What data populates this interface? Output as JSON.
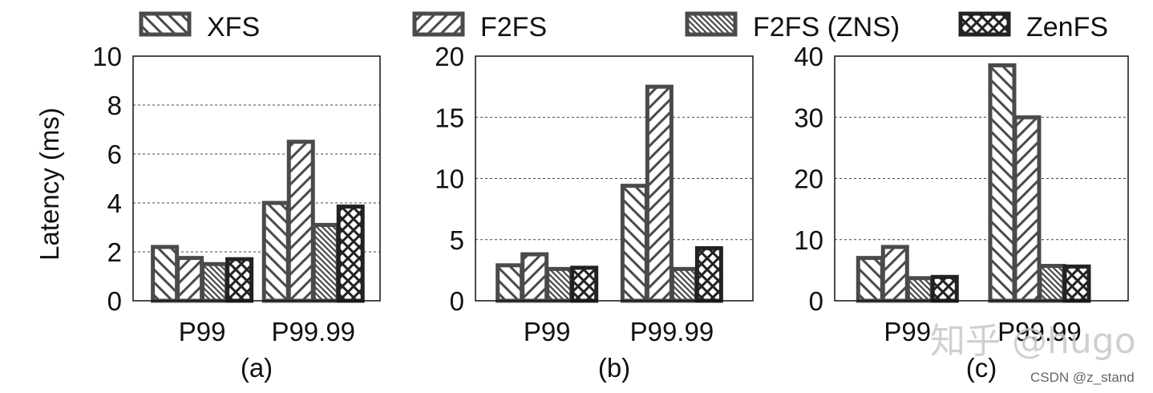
{
  "legend": [
    {
      "label": "XFS",
      "pattern": "back-diagonal"
    },
    {
      "label": "F2FS",
      "pattern": "forward-diagonal"
    },
    {
      "label": "F2FS (ZNS)",
      "pattern": "dense-back-diagonal"
    },
    {
      "label": "ZenFS",
      "pattern": "crosshatch"
    }
  ],
  "colors": {
    "bar_stroke": "#4a4a4a",
    "zenfs_stroke": "#222222",
    "grid": "#444444",
    "axis": "#111111"
  },
  "chart_data": [
    {
      "type": "bar",
      "panel_label": "(a)",
      "ylabel": "Latency (ms)",
      "categories": [
        "P99",
        "P99.99"
      ],
      "ylim": [
        0,
        10
      ],
      "yticks": [
        0,
        2,
        4,
        6,
        8,
        10
      ],
      "grid": true,
      "series": [
        {
          "name": "XFS",
          "values": [
            2.2,
            4.0
          ]
        },
        {
          "name": "F2FS",
          "values": [
            1.75,
            6.5
          ]
        },
        {
          "name": "F2FS (ZNS)",
          "values": [
            1.5,
            3.1
          ]
        },
        {
          "name": "ZenFS",
          "values": [
            1.7,
            3.85
          ]
        }
      ]
    },
    {
      "type": "bar",
      "panel_label": "(b)",
      "ylabel": "",
      "categories": [
        "P99",
        "P99.99"
      ],
      "ylim": [
        0,
        20
      ],
      "yticks": [
        0,
        5,
        10,
        15,
        20
      ],
      "grid": true,
      "series": [
        {
          "name": "XFS",
          "values": [
            2.9,
            9.4
          ]
        },
        {
          "name": "F2FS",
          "values": [
            3.8,
            17.5
          ]
        },
        {
          "name": "F2FS (ZNS)",
          "values": [
            2.6,
            2.6
          ]
        },
        {
          "name": "ZenFS",
          "values": [
            2.7,
            4.3
          ]
        }
      ]
    },
    {
      "type": "bar",
      "panel_label": "(c)",
      "ylabel": "",
      "categories": [
        "P99",
        "P99.99"
      ],
      "ylim": [
        0,
        40
      ],
      "yticks": [
        0,
        10,
        20,
        30,
        40
      ],
      "grid": true,
      "series": [
        {
          "name": "XFS",
          "values": [
            7.0,
            38.5
          ]
        },
        {
          "name": "F2FS",
          "values": [
            8.8,
            30.0
          ]
        },
        {
          "name": "F2FS (ZNS)",
          "values": [
            3.7,
            5.7
          ]
        },
        {
          "name": "ZenFS",
          "values": [
            3.9,
            5.6
          ]
        }
      ]
    }
  ],
  "watermark": "知乎 @hugo",
  "credit": "CSDN @z_stand"
}
